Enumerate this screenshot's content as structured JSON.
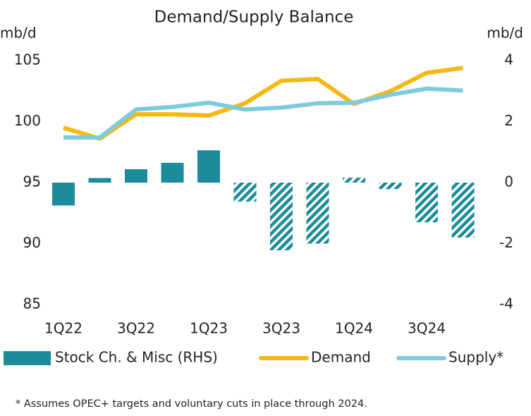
{
  "chart_data": {
    "type": "bar-line",
    "title": "Demand/Supply Balance",
    "y_label": "mb/d",
    "y2_label": "mb/d",
    "footnote": "* Assumes OPEC+ targets and voluntary cuts in place through 2024.",
    "categories": [
      "1Q22",
      null,
      "3Q22",
      null,
      "1Q23",
      null,
      "3Q23",
      null,
      "1Q24",
      null,
      "3Q24",
      null
    ],
    "ylim": [
      85,
      105
    ],
    "yticks": [
      85,
      90,
      95,
      100,
      105
    ],
    "y2lim": [
      -4,
      4
    ],
    "y2ticks": [
      -4,
      -2,
      0,
      2,
      4
    ],
    "series": [
      {
        "name": "Stock Ch. & Misc (RHS)",
        "type": "bar",
        "axis": "y2",
        "color": "#1b8c9b",
        "values": [
          -0.75,
          0.15,
          0.44,
          0.65,
          1.06,
          -0.62,
          -2.22,
          -2.0,
          0.16,
          -0.21,
          -1.3,
          -1.8
        ],
        "hatched": [
          false,
          false,
          false,
          false,
          false,
          true,
          true,
          true,
          true,
          true,
          true,
          true
        ]
      },
      {
        "name": "Demand",
        "type": "line",
        "color": "#f5b811",
        "values": [
          99.5,
          98.6,
          100.6,
          100.6,
          100.5,
          101.5,
          103.35,
          103.5,
          101.45,
          102.5,
          104.0,
          104.4
        ]
      },
      {
        "name": "Supply*",
        "type": "line",
        "color": "#7ecbdb",
        "values": [
          98.7,
          98.7,
          101.0,
          101.2,
          101.55,
          101.0,
          101.15,
          101.5,
          101.55,
          102.2,
          102.7,
          102.55
        ]
      }
    ]
  }
}
